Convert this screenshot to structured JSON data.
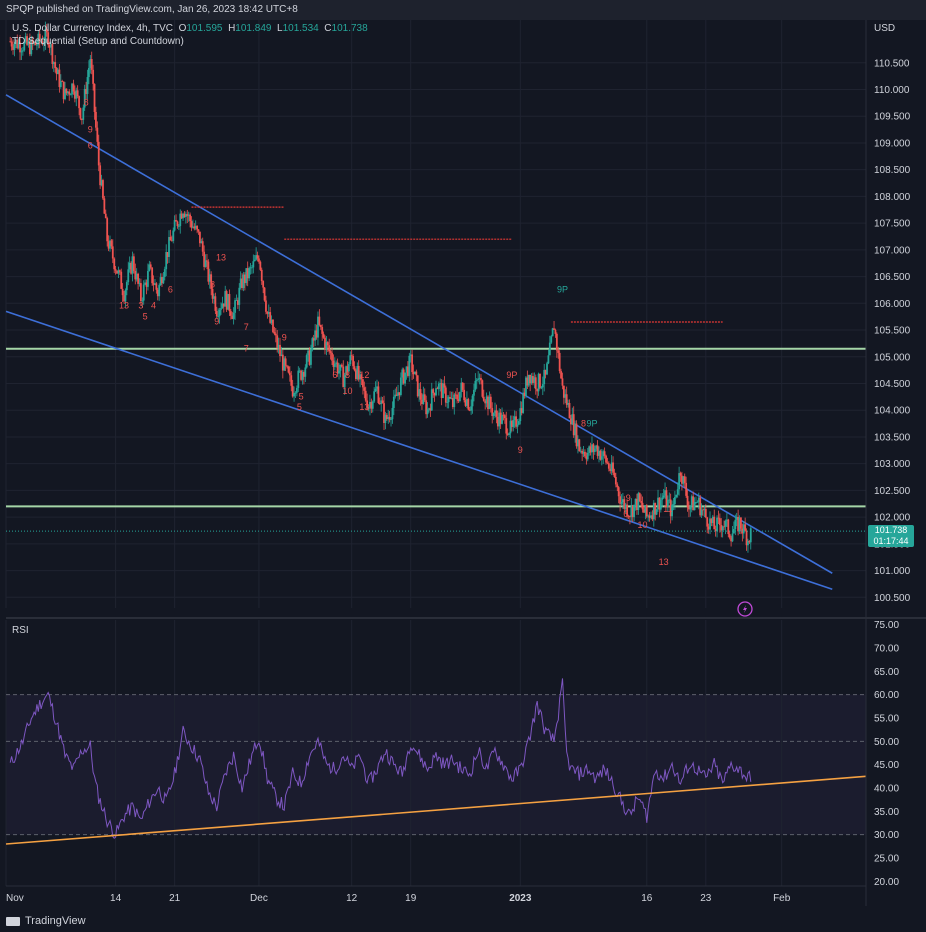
{
  "header": {
    "published": "SPQP published on TradingView.com, Jan 26, 2023 18:42 UTC+8"
  },
  "legend": {
    "symbol": "U.S. Dollar Currency Index, 4h, TVC",
    "o_label": "O",
    "o_value": "101.595",
    "h_label": "H",
    "h_value": "101.849",
    "l_label": "L",
    "l_value": "101.534",
    "c_label": "C",
    "c_value": "101.738",
    "indicator": "TD Sequential (Setup and Countdown)"
  },
  "currency_label": "USD",
  "price_tag": {
    "price": "101.738",
    "countdown": "01:17:44"
  },
  "rsi_label": "RSI",
  "footer": {
    "brand": "TradingView"
  },
  "colors": {
    "background": "#131722",
    "trendline": "#3d6fd8",
    "support": "#a5d6a7",
    "resistance_dashed": "#e53935",
    "rsi_line": "#7e57c2",
    "rsi_trend": "#f5a142",
    "price_tag": "#26a69a",
    "up_candle": "#26a69a",
    "down_candle": "#ef5350"
  },
  "chart_data": [
    {
      "type": "candlestick",
      "title": "U.S. Dollar Currency Index, 4h, TVC",
      "y_axis_label": "USD",
      "y_ticks": [
        "110.500",
        "110.000",
        "109.500",
        "109.000",
        "108.500",
        "108.000",
        "107.500",
        "107.000",
        "106.500",
        "106.000",
        "105.500",
        "105.000",
        "104.500",
        "104.000",
        "103.500",
        "103.000",
        "102.500",
        "102.000",
        "101.500",
        "101.000",
        "100.500"
      ],
      "ylim": [
        100.3,
        111.3
      ],
      "x_ticks": [
        {
          "label": "Nov",
          "day": 0
        },
        {
          "label": "14",
          "day": 13
        },
        {
          "label": "21",
          "day": 20
        },
        {
          "label": "Dec",
          "day": 30
        },
        {
          "label": "12",
          "day": 41
        },
        {
          "label": "19",
          "day": 48
        },
        {
          "label": "2023",
          "day": 61
        },
        {
          "label": "16",
          "day": 76
        },
        {
          "label": "23",
          "day": 83
        },
        {
          "label": "Feb",
          "day": 92
        }
      ],
      "xlim": [
        0,
        102
      ],
      "close_path": [
        [
          0.5,
          110.9
        ],
        [
          3,
          110.8
        ],
        [
          5,
          111.0
        ],
        [
          6,
          110.3
        ],
        [
          7,
          109.9
        ],
        [
          8,
          110.1
        ],
        [
          9,
          109.5
        ],
        [
          10,
          110.6
        ],
        [
          11,
          108.6
        ],
        [
          12,
          107.2
        ],
        [
          13,
          106.7
        ],
        [
          14,
          106.2
        ],
        [
          15,
          106.8
        ],
        [
          16,
          106.1
        ],
        [
          17,
          106.6
        ],
        [
          18,
          106.2
        ],
        [
          19,
          106.9
        ],
        [
          20,
          107.4
        ],
        [
          21,
          107.8
        ],
        [
          22,
          107.5
        ],
        [
          23,
          107.2
        ],
        [
          24,
          106.5
        ],
        [
          25,
          105.9
        ],
        [
          26,
          106.1
        ],
        [
          27,
          105.8
        ],
        [
          28,
          106.4
        ],
        [
          29,
          106.6
        ],
        [
          30,
          106.9
        ],
        [
          31,
          105.8
        ],
        [
          32,
          105.3
        ],
        [
          33,
          104.8
        ],
        [
          34,
          104.4
        ],
        [
          35,
          104.7
        ],
        [
          36,
          105.0
        ],
        [
          37,
          105.6
        ],
        [
          38,
          105.2
        ],
        [
          39,
          104.9
        ],
        [
          40,
          104.6
        ],
        [
          41,
          105.0
        ],
        [
          42,
          104.5
        ],
        [
          43,
          104.1
        ],
        [
          44,
          104.4
        ],
        [
          45,
          103.8
        ],
        [
          46,
          104.1
        ],
        [
          47,
          104.6
        ],
        [
          48,
          104.9
        ],
        [
          49,
          104.3
        ],
        [
          50,
          104.0
        ],
        [
          51,
          104.5
        ],
        [
          52,
          104.3
        ],
        [
          53,
          104.1
        ],
        [
          54,
          104.4
        ],
        [
          55,
          104.1
        ],
        [
          56,
          104.6
        ],
        [
          57,
          104.2
        ],
        [
          58,
          103.9
        ],
        [
          59,
          103.8
        ],
        [
          60,
          103.6
        ],
        [
          61,
          104.0
        ],
        [
          62,
          104.7
        ],
        [
          63,
          104.5
        ],
        [
          64,
          104.6
        ],
        [
          65,
          105.6
        ],
        [
          66,
          104.4
        ],
        [
          67,
          103.9
        ],
        [
          68,
          103.3
        ],
        [
          69,
          103.2
        ],
        [
          70,
          103.3
        ],
        [
          71,
          103.1
        ],
        [
          72,
          102.8
        ],
        [
          73,
          102.3
        ],
        [
          74,
          102.1
        ],
        [
          75,
          102.3
        ],
        [
          76,
          102.0
        ],
        [
          77,
          102.2
        ],
        [
          78,
          102.4
        ],
        [
          79,
          102.1
        ],
        [
          80,
          102.9
        ],
        [
          81,
          102.2
        ],
        [
          82,
          102.3
        ],
        [
          83,
          102.0
        ],
        [
          84,
          101.8
        ],
        [
          85,
          101.9
        ],
        [
          86,
          101.7
        ],
        [
          87,
          101.9
        ],
        [
          88,
          101.6
        ],
        [
          88.5,
          101.74
        ]
      ],
      "close_price": 101.738,
      "horizontal_levels": [
        {
          "price": 105.15,
          "style": "support"
        },
        {
          "price": 102.2,
          "style": "support"
        }
      ],
      "resistance_segments": [
        {
          "price": 107.8,
          "from_day": 22,
          "to_day": 33
        },
        {
          "price": 107.2,
          "from_day": 33,
          "to_day": 60
        },
        {
          "price": 105.65,
          "from_day": 67,
          "to_day": 85
        }
      ],
      "trendlines": [
        {
          "from": [
            0,
            109.9
          ],
          "to": [
            98,
            100.95
          ]
        },
        {
          "from": [
            0,
            105.85
          ],
          "to": [
            98,
            100.65
          ]
        }
      ],
      "td_labels": [
        {
          "text": "8",
          "day": 9.5,
          "price": 109.7
        },
        {
          "text": "9",
          "day": 10,
          "price": 109.2
        },
        {
          "text": "6",
          "day": 10,
          "price": 108.9
        },
        {
          "text": "13",
          "day": 14,
          "price": 105.9
        },
        {
          "text": "3",
          "day": 16,
          "price": 105.9
        },
        {
          "text": "4",
          "day": 17.5,
          "price": 105.9
        },
        {
          "text": "5",
          "day": 16.5,
          "price": 105.7
        },
        {
          "text": "6",
          "day": 19.5,
          "price": 106.2
        },
        {
          "text": "8",
          "day": 24.5,
          "price": 106.3
        },
        {
          "text": "9",
          "day": 25,
          "price": 105.6
        },
        {
          "text": "13",
          "day": 25.5,
          "price": 106.8
        },
        {
          "text": "7",
          "day": 28.5,
          "price": 105.5
        },
        {
          "text": "7",
          "day": 28.5,
          "price": 105.1
        },
        {
          "text": "9",
          "day": 33,
          "price": 105.3
        },
        {
          "text": "5",
          "day": 35,
          "price": 104.2
        },
        {
          "text": "5",
          "day": 34.8,
          "price": 104.0
        },
        {
          "text": "6",
          "day": 39,
          "price": 104.6
        },
        {
          "text": "8",
          "day": 40.5,
          "price": 104.6
        },
        {
          "text": "10",
          "day": 40.5,
          "price": 104.3
        },
        {
          "text": "12",
          "day": 42.5,
          "price": 104.6
        },
        {
          "text": "13",
          "day": 42.5,
          "price": 104.0
        },
        {
          "text": "9P",
          "day": 60,
          "price": 104.6
        },
        {
          "text": "9",
          "day": 61,
          "price": 103.2
        },
        {
          "text": "9P",
          "day": 66,
          "price": 106.2
        },
        {
          "text": "8",
          "day": 68.5,
          "price": 103.7
        },
        {
          "text": "9P",
          "day": 69.5,
          "price": 103.7
        },
        {
          "text": "6",
          "day": 73.5,
          "price": 102.0
        },
        {
          "text": "9",
          "day": 73.8,
          "price": 102.3
        },
        {
          "text": "10",
          "day": 75.5,
          "price": 101.8
        },
        {
          "text": "11",
          "day": 78.5,
          "price": 102.1
        },
        {
          "text": "13",
          "day": 78,
          "price": 101.1
        }
      ]
    },
    {
      "type": "line",
      "title": "RSI",
      "y_ticks": [
        "75.00",
        "70.00",
        "65.00",
        "60.00",
        "55.00",
        "50.00",
        "45.00",
        "40.00",
        "35.00",
        "30.00",
        "25.00",
        "20.00"
      ],
      "ylim": [
        19,
        76
      ],
      "bands": {
        "upper": 60,
        "middle": 50,
        "lower": 30
      },
      "series": [
        {
          "values": [
            [
              0.5,
              45
            ],
            [
              2,
              50
            ],
            [
              3,
              55
            ],
            [
              4,
              58
            ],
            [
              5,
              60
            ],
            [
              6,
              54
            ],
            [
              7,
              47
            ],
            [
              8,
              44
            ],
            [
              9,
              48
            ],
            [
              10,
              49
            ],
            [
              10.5,
              42
            ],
            [
              11,
              38
            ],
            [
              12,
              33
            ],
            [
              13,
              30
            ],
            [
              14,
              34
            ],
            [
              15,
              36
            ],
            [
              16,
              33
            ],
            [
              17,
              37
            ],
            [
              18,
              40
            ],
            [
              19,
              37
            ],
            [
              20,
              43
            ],
            [
              21,
              52
            ],
            [
              22,
              49
            ],
            [
              23,
              46
            ],
            [
              24,
              39
            ],
            [
              25,
              36
            ],
            [
              26,
              43
            ],
            [
              27,
              47
            ],
            [
              28,
              40
            ],
            [
              29,
              46
            ],
            [
              30,
              51
            ],
            [
              31,
              42
            ],
            [
              32,
              38
            ],
            [
              33,
              36
            ],
            [
              34,
              43
            ],
            [
              35,
              41
            ],
            [
              36,
              47
            ],
            [
              37,
              50
            ],
            [
              38,
              45
            ],
            [
              39,
              44
            ],
            [
              40,
              47
            ],
            [
              41,
              44
            ],
            [
              42,
              47
            ],
            [
              43,
              41
            ],
            [
              44,
              44
            ],
            [
              45,
              48
            ],
            [
              46,
              45
            ],
            [
              47,
              43
            ],
            [
              48,
              50
            ],
            [
              49,
              47
            ],
            [
              50,
              44
            ],
            [
              51,
              47
            ],
            [
              52,
              45
            ],
            [
              53,
              46
            ],
            [
              54,
              44
            ],
            [
              55,
              43
            ],
            [
              56,
              48
            ],
            [
              57,
              44
            ],
            [
              58,
              48
            ],
            [
              59,
              45
            ],
            [
              60,
              42
            ],
            [
              61,
              44
            ],
            [
              62,
              50
            ],
            [
              63,
              58
            ],
            [
              64,
              52
            ],
            [
              65,
              50
            ],
            [
              66,
              62
            ],
            [
              66.5,
              47
            ],
            [
              67,
              44
            ],
            [
              68,
              43
            ],
            [
              69,
              44
            ],
            [
              70,
              42
            ],
            [
              71,
              44
            ],
            [
              72,
              41
            ],
            [
              73,
              37
            ],
            [
              74,
              34
            ],
            [
              75,
              38
            ],
            [
              76,
              34
            ],
            [
              77,
              44
            ],
            [
              78,
              42
            ],
            [
              79,
              45
            ],
            [
              80,
              41
            ],
            [
              81,
              45
            ],
            [
              82,
              44
            ],
            [
              83,
              42
            ],
            [
              84,
              45
            ],
            [
              85,
              41
            ],
            [
              86,
              45
            ],
            [
              87,
              44
            ],
            [
              88,
              42
            ],
            [
              88.5,
              43
            ]
          ]
        }
      ],
      "trendline": {
        "from": [
          0,
          28
        ],
        "to": [
          102,
          42.5
        ]
      }
    }
  ]
}
